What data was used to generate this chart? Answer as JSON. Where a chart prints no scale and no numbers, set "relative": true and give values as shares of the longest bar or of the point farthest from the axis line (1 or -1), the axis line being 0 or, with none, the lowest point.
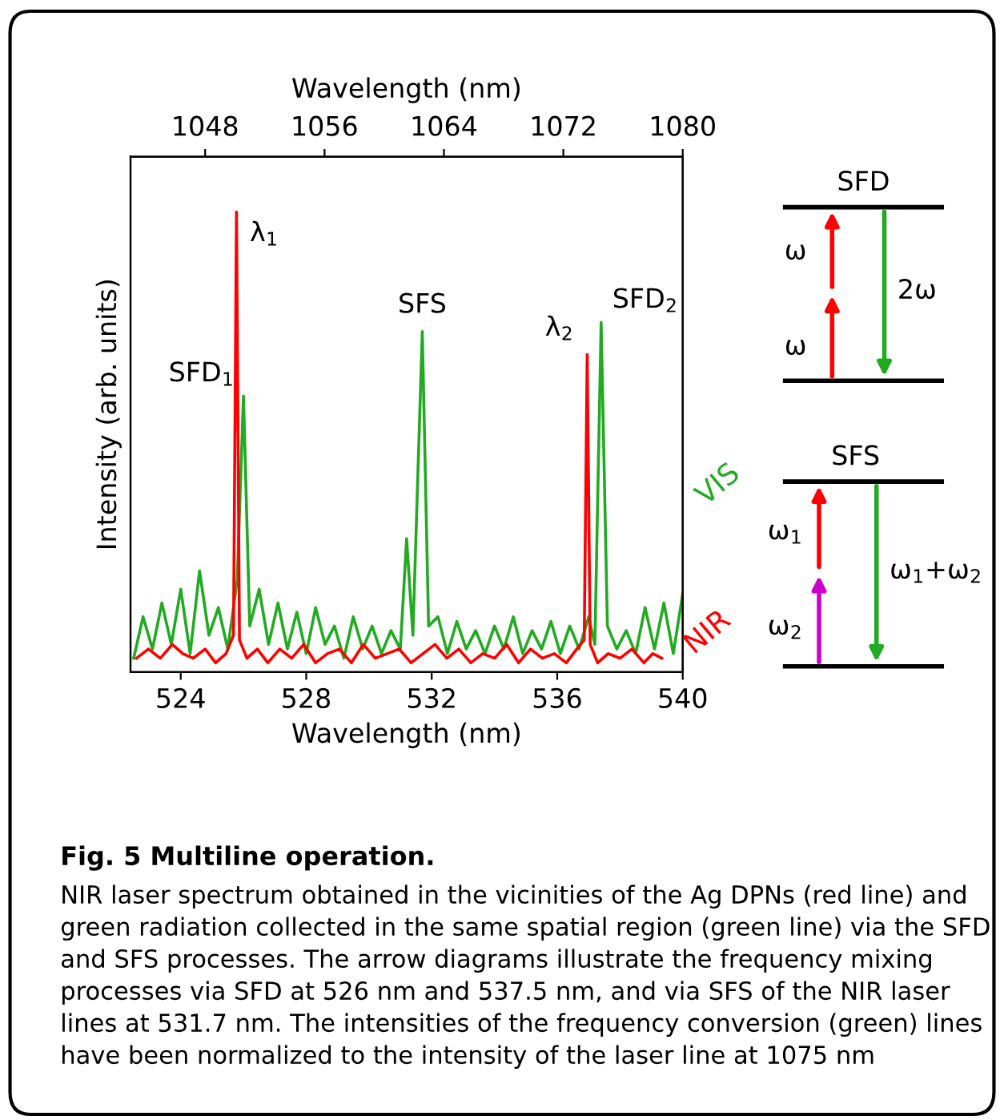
{
  "chart_data": {
    "type": "line",
    "relative": true,
    "xlabel": "Wavelength (nm)",
    "x2label": "Wavelength (nm)",
    "ylabel": "Intensity (arb. units)",
    "xlim": [
      522.4,
      540
    ],
    "xticks": [
      524,
      528,
      532,
      536,
      540
    ],
    "x2lim": [
      1043,
      1080
    ],
    "x2ticks": [
      1048,
      1056,
      1064,
      1072,
      1080
    ],
    "grid": false,
    "legend": false,
    "marker": "none",
    "line_style": "solid",
    "series": [
      {
        "name": "NIR",
        "color": "#ff0000",
        "axis": "x2",
        "x": [
          1043.4,
          1044.2,
          1045.0,
          1045.8,
          1046.5,
          1047.2,
          1048.0,
          1048.7,
          1049.4,
          1049.9,
          1050.1,
          1050.3,
          1050.8,
          1051.5,
          1052.2,
          1053.0,
          1053.8,
          1054.6,
          1055.4,
          1056.2,
          1057.0,
          1057.8,
          1058.6,
          1059.4,
          1060.2,
          1061.0,
          1061.8,
          1062.6,
          1063.4,
          1064.2,
          1065.0,
          1065.8,
          1066.6,
          1067.4,
          1068.2,
          1069.0,
          1069.8,
          1070.6,
          1071.4,
          1072.2,
          1072.9,
          1073.4,
          1073.6,
          1073.8,
          1074.3,
          1075.0,
          1075.8,
          1076.6,
          1077.4,
          1078.0,
          1078.6
        ],
        "values": [
          0.03,
          0.05,
          0.03,
          0.06,
          0.04,
          0.03,
          0.05,
          0.02,
          0.04,
          0.08,
          1.0,
          0.07,
          0.03,
          0.05,
          0.02,
          0.05,
          0.03,
          0.06,
          0.02,
          0.04,
          0.05,
          0.02,
          0.06,
          0.03,
          0.04,
          0.05,
          0.02,
          0.04,
          0.06,
          0.03,
          0.05,
          0.02,
          0.04,
          0.03,
          0.06,
          0.02,
          0.05,
          0.03,
          0.04,
          0.02,
          0.05,
          0.07,
          0.69,
          0.06,
          0.02,
          0.04,
          0.03,
          0.05,
          0.02,
          0.04,
          0.03
        ]
      },
      {
        "name": "VIS",
        "color": "#22aa22",
        "x": [
          522.5,
          522.8,
          523.1,
          523.4,
          523.7,
          524.0,
          524.3,
          524.6,
          524.9,
          525.2,
          525.5,
          525.8,
          526.0,
          526.2,
          526.5,
          526.8,
          527.1,
          527.4,
          527.7,
          528.0,
          528.3,
          528.6,
          528.9,
          529.2,
          529.5,
          529.8,
          530.1,
          530.4,
          530.7,
          531.0,
          531.2,
          531.4,
          531.7,
          531.9,
          532.2,
          532.5,
          532.8,
          533.1,
          533.4,
          533.7,
          534.0,
          534.3,
          534.6,
          534.9,
          535.2,
          535.5,
          535.8,
          536.1,
          536.4,
          536.7,
          537.0,
          537.2,
          537.4,
          537.6,
          537.9,
          538.2,
          538.5,
          538.8,
          539.1,
          539.4,
          539.7,
          540.0
        ],
        "values": [
          0.03,
          0.12,
          0.05,
          0.15,
          0.06,
          0.18,
          0.04,
          0.22,
          0.08,
          0.14,
          0.05,
          0.2,
          0.6,
          0.1,
          0.18,
          0.06,
          0.15,
          0.05,
          0.13,
          0.04,
          0.14,
          0.06,
          0.1,
          0.03,
          0.12,
          0.05,
          0.1,
          0.04,
          0.09,
          0.05,
          0.29,
          0.08,
          0.74,
          0.1,
          0.12,
          0.04,
          0.11,
          0.05,
          0.09,
          0.04,
          0.1,
          0.05,
          0.12,
          0.04,
          0.09,
          0.05,
          0.11,
          0.04,
          0.1,
          0.05,
          0.12,
          0.06,
          0.76,
          0.1,
          0.05,
          0.09,
          0.04,
          0.14,
          0.05,
          0.15,
          0.04,
          0.17
        ]
      }
    ],
    "annotations": [
      {
        "text": "SFD$_{1}$",
        "x": 526.0,
        "y": 0.6
      },
      {
        "text": "SFS",
        "x": 531.7,
        "y": 0.74
      },
      {
        "text": "SFD$_{2}$",
        "x": 537.4,
        "y": 0.76
      },
      "λ$_{1}$",
      "λ$_{2}$",
      "SFD",
      "ω",
      "ω",
      "2ω",
      "SFS",
      "ω$_{1}$",
      "ω$_{2}$",
      "ω$_{1}$+ω$_{2}$",
      "Fig. 5 Multiline operation.",
      "NIR laser spectrum obtained in the vicinities of the Ag DPNs (red line) and green radiation collected in the same spatial region (green line) via the SFD and SFS processes. The arrow diagrams illustrate the frequency mixing processes via SFD at 526 nm and 537.5 nm, and via SFS of the NIR laser lines at 531.7 nm. The intensities of the frequency conversion (green) lines have been normalized to the intensity of the laser line at 1075 nm"
    ]
  }
}
